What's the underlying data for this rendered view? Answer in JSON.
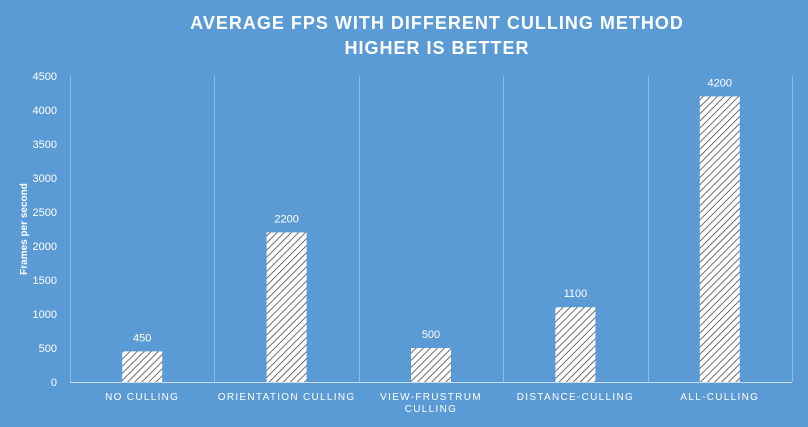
{
  "colors": {
    "background": "#5b9bd5",
    "text": "#ffffff",
    "bar_fill": "#ffffff",
    "bar_hatch": "#4a4a4a"
  },
  "chart_data": {
    "type": "bar",
    "title": "AVERAGE FPS WITH DIFFERENT CULLING METHOD",
    "subtitle": "HIGHER IS BETTER",
    "xlabel": "",
    "ylabel": "Frames per second",
    "categories": [
      "NO CULLING",
      "ORIENTATION CULLING",
      "VIEW-FRUSTRUM CULLING",
      "DISTANCE-CULLING",
      "ALL-CULLING"
    ],
    "category_lines": [
      [
        "NO CULLING"
      ],
      [
        "ORIENTATION CULLING"
      ],
      [
        "VIEW-FRUSTRUM",
        "CULLING"
      ],
      [
        "DISTANCE-CULLING"
      ],
      [
        "ALL-CULLING"
      ]
    ],
    "values": [
      450,
      2200,
      500,
      1100,
      4200
    ],
    "data_labels": [
      "450",
      "2200",
      "500",
      "1100",
      "4200"
    ],
    "ylim": [
      0,
      4500
    ],
    "yticks": [
      0,
      500,
      1000,
      1500,
      2000,
      2500,
      3000,
      3500,
      4000,
      4500
    ],
    "gridlines": "vertical-category-separators",
    "legend": "none",
    "bar_pattern": "diagonal-hatch"
  }
}
